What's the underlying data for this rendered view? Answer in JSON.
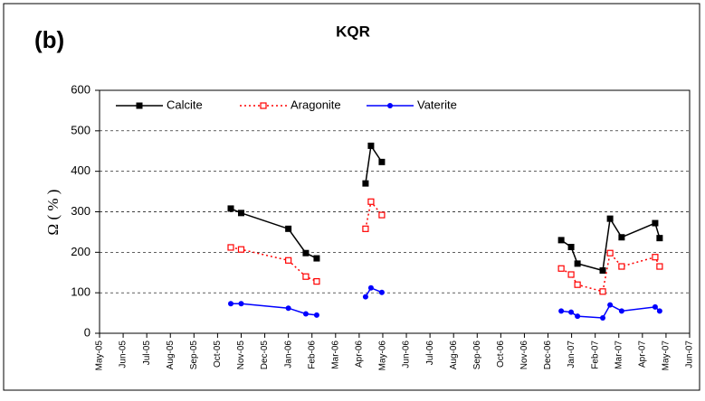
{
  "chart_data": {
    "type": "line",
    "title": "KQR",
    "panel_label": "(b)",
    "y_label": "Ω ( % )",
    "x": [
      5.56,
      6.0,
      8.0,
      8.74,
      9.2,
      10.2,
      11.27,
      11.5,
      11.96,
      15.0,
      19.56,
      19.98,
      20.25,
      21.32,
      21.63,
      22.12,
      23.54,
      23.73
    ],
    "series": [
      {
        "name": "Calcite",
        "color": "#000000",
        "marker": "square",
        "dashed": false,
        "values": [
          308,
          297,
          258,
          198,
          185,
          null,
          370,
          463,
          423,
          null,
          230,
          213,
          172,
          155,
          283,
          237,
          272,
          235
        ]
      },
      {
        "name": "Aragonite",
        "color": "#ff0000",
        "marker": "open-square",
        "dashed": true,
        "values": [
          212,
          207,
          180,
          140,
          128,
          null,
          258,
          325,
          292,
          null,
          160,
          145,
          120,
          103,
          198,
          165,
          188,
          165
        ]
      },
      {
        "name": "Vaterite",
        "color": "#0000ff",
        "marker": "circle",
        "dashed": false,
        "values": [
          73,
          73,
          62,
          48,
          45,
          null,
          90,
          112,
          101,
          null,
          55,
          52,
          42,
          38,
          70,
          55,
          65,
          55
        ]
      }
    ],
    "xlim": [
      0,
      25
    ],
    "xticks": [
      {
        "value": 0,
        "label": "May-05"
      },
      {
        "value": 1,
        "label": "Jun-05"
      },
      {
        "value": 2,
        "label": "Jul-05"
      },
      {
        "value": 3,
        "label": "Aug-05"
      },
      {
        "value": 4,
        "label": "Sep-05"
      },
      {
        "value": 5,
        "label": "Oct-05"
      },
      {
        "value": 6,
        "label": "Nov-05"
      },
      {
        "value": 7,
        "label": "Dec-05"
      },
      {
        "value": 8,
        "label": "Jan-06"
      },
      {
        "value": 9,
        "label": "Feb-06"
      },
      {
        "value": 10,
        "label": "Mar-06"
      },
      {
        "value": 11,
        "label": "Apr-06"
      },
      {
        "value": 12,
        "label": "May-06"
      },
      {
        "value": 13,
        "label": "Jun-06"
      },
      {
        "value": 14,
        "label": "Jul-06"
      },
      {
        "value": 15,
        "label": "Aug-06"
      },
      {
        "value": 16,
        "label": "Sep-06"
      },
      {
        "value": 17,
        "label": "Oct-06"
      },
      {
        "value": 18,
        "label": "Nov-06"
      },
      {
        "value": 19,
        "label": "Dec-06"
      },
      {
        "value": 20,
        "label": "Jan-07"
      },
      {
        "value": 21,
        "label": "Feb-07"
      },
      {
        "value": 22,
        "label": "Mar-07"
      },
      {
        "value": 23,
        "label": "Apr-07"
      },
      {
        "value": 24,
        "label": "May-07"
      },
      {
        "value": 25,
        "label": "Jun-07"
      }
    ],
    "ylim": [
      0,
      600
    ],
    "yticks": [
      0,
      100,
      200,
      300,
      400,
      500,
      600
    ],
    "grid": true
  }
}
